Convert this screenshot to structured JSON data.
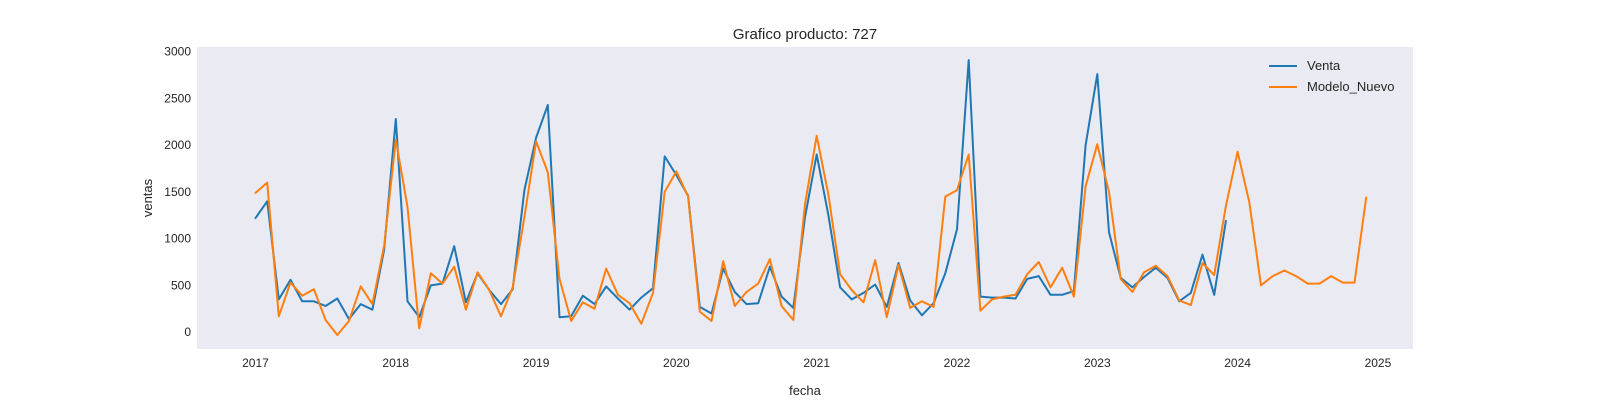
{
  "chart_data": {
    "type": "line",
    "title": "Grafico producto: 727",
    "xlabel": "fecha",
    "ylabel": "ventas",
    "xlim": [
      "2016-08-01",
      "2025-04-01"
    ],
    "ylim": [
      -180,
      3050
    ],
    "x_ticks": [
      "2017",
      "2018",
      "2019",
      "2020",
      "2021",
      "2022",
      "2023",
      "2024",
      "2025"
    ],
    "y_ticks": [
      0,
      500,
      1000,
      1500,
      2000,
      2500,
      3000
    ],
    "grid": false,
    "legend_position": "top-right",
    "background": "#eaeaf2",
    "series": [
      {
        "name": "Venta",
        "color": "#1f77b4",
        "x": [
          "2017-01",
          "2017-02",
          "2017-03",
          "2017-04",
          "2017-05",
          "2017-06",
          "2017-07",
          "2017-08",
          "2017-09",
          "2017-10",
          "2017-11",
          "2017-12",
          "2018-01",
          "2018-02",
          "2018-03",
          "2018-04",
          "2018-05",
          "2018-06",
          "2018-07",
          "2018-08",
          "2018-09",
          "2018-10",
          "2018-11",
          "2018-12",
          "2019-01",
          "2019-02",
          "2019-03",
          "2019-04",
          "2019-05",
          "2019-06",
          "2019-07",
          "2019-08",
          "2019-09",
          "2019-10",
          "2019-11",
          "2019-12",
          "2020-01",
          "2020-02",
          "2020-03",
          "2020-04",
          "2020-05",
          "2020-06",
          "2020-07",
          "2020-08",
          "2020-09",
          "2020-10",
          "2020-11",
          "2020-12",
          "2021-01",
          "2021-02",
          "2021-03",
          "2021-04",
          "2021-05",
          "2021-06",
          "2021-07",
          "2021-08",
          "2021-09",
          "2021-10",
          "2021-11",
          "2021-12",
          "2022-01",
          "2022-02",
          "2022-03",
          "2022-04",
          "2022-05",
          "2022-06",
          "2022-07",
          "2022-08",
          "2022-09",
          "2022-10",
          "2022-11",
          "2022-12",
          "2023-01",
          "2023-02",
          "2023-03",
          "2023-04",
          "2023-05",
          "2023-06",
          "2023-07",
          "2023-08",
          "2023-09",
          "2023-10",
          "2023-11",
          "2023-12"
        ],
        "values": [
          1220,
          1400,
          350,
          560,
          330,
          330,
          280,
          360,
          140,
          300,
          240,
          880,
          2280,
          330,
          160,
          500,
          520,
          920,
          320,
          630,
          450,
          300,
          460,
          1520,
          2080,
          2430,
          160,
          170,
          390,
          300,
          490,
          360,
          240,
          370,
          470,
          1880,
          1680,
          1460,
          270,
          200,
          680,
          430,
          300,
          310,
          700,
          380,
          260,
          1230,
          1900,
          1250,
          480,
          350,
          420,
          510,
          270,
          740,
          340,
          180,
          310,
          630,
          1100,
          2910,
          380,
          370,
          370,
          360,
          570,
          600,
          400,
          400,
          440,
          2000,
          2760,
          1070,
          580,
          480,
          590,
          690,
          580,
          330,
          420,
          830,
          400,
          1190
        ]
      },
      {
        "name": "Modelo_Nuevo",
        "color": "#ff7f0e",
        "x": [
          "2017-01",
          "2017-02",
          "2017-03",
          "2017-04",
          "2017-05",
          "2017-06",
          "2017-07",
          "2017-08",
          "2017-09",
          "2017-10",
          "2017-11",
          "2017-12",
          "2018-01",
          "2018-02",
          "2018-03",
          "2018-04",
          "2018-05",
          "2018-06",
          "2018-07",
          "2018-08",
          "2018-09",
          "2018-10",
          "2018-11",
          "2018-12",
          "2019-01",
          "2019-02",
          "2019-03",
          "2019-04",
          "2019-05",
          "2019-06",
          "2019-07",
          "2019-08",
          "2019-09",
          "2019-10",
          "2019-11",
          "2019-12",
          "2020-01",
          "2020-02",
          "2020-03",
          "2020-04",
          "2020-05",
          "2020-06",
          "2020-07",
          "2020-08",
          "2020-09",
          "2020-10",
          "2020-11",
          "2020-12",
          "2021-01",
          "2021-02",
          "2021-03",
          "2021-04",
          "2021-05",
          "2021-06",
          "2021-07",
          "2021-08",
          "2021-09",
          "2021-10",
          "2021-11",
          "2021-12",
          "2022-01",
          "2022-02",
          "2022-03",
          "2022-04",
          "2022-05",
          "2022-06",
          "2022-07",
          "2022-08",
          "2022-09",
          "2022-10",
          "2022-11",
          "2022-12",
          "2023-01",
          "2023-02",
          "2023-03",
          "2023-04",
          "2023-05",
          "2023-06",
          "2023-07",
          "2023-08",
          "2023-09",
          "2023-10",
          "2023-11",
          "2023-12",
          "2024-01",
          "2024-02",
          "2024-03",
          "2024-04",
          "2024-05",
          "2024-06",
          "2024-07",
          "2024-08",
          "2024-09",
          "2024-10",
          "2024-11",
          "2024-12"
        ],
        "values": [
          1490,
          1600,
          170,
          530,
          390,
          460,
          130,
          -30,
          120,
          490,
          300,
          920,
          2060,
          1340,
          40,
          630,
          520,
          700,
          240,
          640,
          450,
          170,
          480,
          1230,
          2040,
          1710,
          570,
          120,
          320,
          250,
          680,
          400,
          310,
          90,
          420,
          1500,
          1720,
          1450,
          220,
          120,
          760,
          280,
          430,
          520,
          780,
          280,
          130,
          1370,
          2100,
          1470,
          620,
          450,
          320,
          770,
          160,
          720,
          260,
          330,
          270,
          1450,
          1520,
          1900,
          230,
          350,
          380,
          400,
          620,
          750,
          480,
          690,
          380,
          1560,
          2010,
          1500,
          570,
          430,
          640,
          710,
          600,
          340,
          290,
          740,
          610,
          1350,
          1930,
          1390,
          500,
          600,
          660,
          600,
          520,
          520,
          600,
          530,
          530,
          1440
        ]
      }
    ]
  }
}
